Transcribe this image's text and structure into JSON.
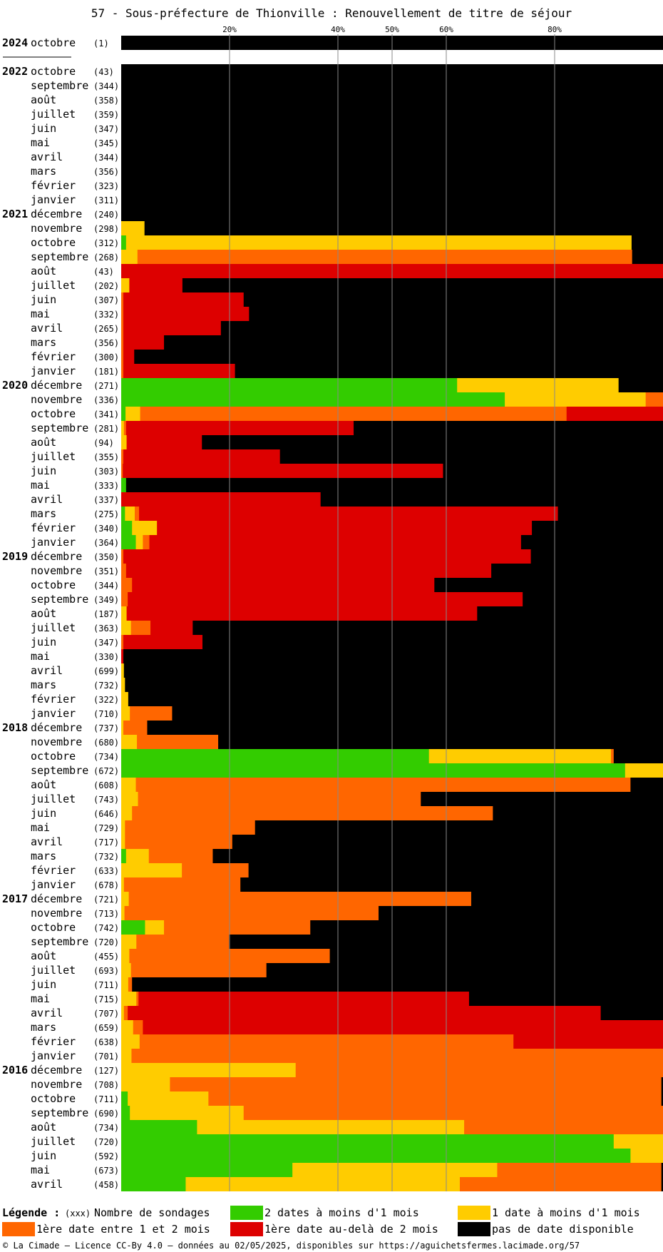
{
  "chart_data": {
    "type": "bar",
    "orientation": "horizontal",
    "stacked": true,
    "title": "57 - Sous-préfecture de Thionville : Renouvellement de titre de séjour",
    "x_ticks": [
      20,
      40,
      50,
      60,
      80
    ],
    "xlim": [
      0,
      100
    ],
    "x_unit": "%",
    "grid": true,
    "colors": {
      "two_dates": "#33cc00",
      "one_date": "#ffcc00",
      "first_1_2_months": "#ff6600",
      "first_over_2_months": "#dd0000",
      "none": "#000000"
    },
    "series_keys": [
      "two_dates",
      "one_date",
      "first_1_2_months",
      "first_over_2_months",
      "none"
    ],
    "rows": [
      {
        "year": "2024",
        "month": "octobre",
        "count": "(1)",
        "v": [
          0,
          0,
          0,
          0,
          100
        ]
      },
      {
        "year": "2022",
        "month": "octobre",
        "count": "(43)",
        "v": [
          0,
          0,
          0,
          0,
          100
        ]
      },
      {
        "year": "",
        "month": "septembre",
        "count": "(344)",
        "v": [
          0,
          0,
          0,
          0,
          100
        ]
      },
      {
        "year": "",
        "month": "août",
        "count": "(358)",
        "v": [
          0,
          0,
          0,
          0,
          100
        ]
      },
      {
        "year": "",
        "month": "juillet",
        "count": "(359)",
        "v": [
          0,
          0,
          0,
          0,
          100
        ]
      },
      {
        "year": "",
        "month": "juin",
        "count": "(347)",
        "v": [
          0,
          0,
          0,
          0,
          100
        ]
      },
      {
        "year": "",
        "month": "mai",
        "count": "(345)",
        "v": [
          0,
          0,
          0,
          0,
          100
        ]
      },
      {
        "year": "",
        "month": "avril",
        "count": "(344)",
        "v": [
          0,
          0,
          0,
          0,
          100
        ]
      },
      {
        "year": "",
        "month": "mars",
        "count": "(356)",
        "v": [
          0,
          0,
          0,
          0,
          100
        ]
      },
      {
        "year": "",
        "month": "février",
        "count": "(323)",
        "v": [
          0,
          0,
          0,
          0,
          100
        ]
      },
      {
        "year": "",
        "month": "janvier",
        "count": "(311)",
        "v": [
          0,
          0,
          0,
          0,
          100
        ]
      },
      {
        "year": "2021",
        "month": "décembre",
        "count": "(240)",
        "v": [
          0,
          0,
          0,
          0,
          100
        ]
      },
      {
        "year": "",
        "month": "novembre",
        "count": "(298)",
        "v": [
          0,
          4.3,
          0,
          0,
          95.7
        ]
      },
      {
        "year": "",
        "month": "octobre",
        "count": "(312)",
        "v": [
          0.9,
          93.3,
          0,
          0,
          5.8
        ]
      },
      {
        "year": "",
        "month": "septembre",
        "count": "(268)",
        "v": [
          0,
          3,
          91.3,
          0,
          5.7
        ]
      },
      {
        "year": "",
        "month": "août",
        "count": "(43)",
        "v": [
          0,
          0,
          0,
          100,
          0
        ]
      },
      {
        "year": "",
        "month": "juillet",
        "count": "(202)",
        "v": [
          0,
          1.5,
          0,
          9.8,
          88.7
        ]
      },
      {
        "year": "",
        "month": "juin",
        "count": "(307)",
        "v": [
          0,
          0,
          0.4,
          22.2,
          77.4
        ]
      },
      {
        "year": "",
        "month": "mai",
        "count": "(332)",
        "v": [
          0,
          0,
          0.4,
          23.2,
          76.4
        ]
      },
      {
        "year": "",
        "month": "avril",
        "count": "(265)",
        "v": [
          0,
          0,
          0.4,
          18,
          81.6
        ]
      },
      {
        "year": "",
        "month": "mars",
        "count": "(356)",
        "v": [
          0,
          0,
          0.4,
          7.5,
          92.1
        ]
      },
      {
        "year": "",
        "month": "février",
        "count": "(300)",
        "v": [
          0,
          0,
          0.4,
          2,
          97.6
        ]
      },
      {
        "year": "",
        "month": "janvier",
        "count": "(181)",
        "v": [
          0,
          0,
          0.4,
          20.6,
          79
        ]
      },
      {
        "year": "2020",
        "month": "décembre",
        "count": "(271)",
        "v": [
          62,
          29.8,
          0,
          0,
          8.2
        ]
      },
      {
        "year": "",
        "month": "novembre",
        "count": "(336)",
        "v": [
          70.8,
          26,
          3.2,
          0,
          0
        ]
      },
      {
        "year": "",
        "month": "octobre",
        "count": "(341)",
        "v": [
          0.8,
          2.7,
          78.7,
          17.8,
          0
        ]
      },
      {
        "year": "",
        "month": "septembre",
        "count": "(281)",
        "v": [
          0,
          0.5,
          0.4,
          42,
          57.1
        ]
      },
      {
        "year": "",
        "month": "août",
        "count": "(94)",
        "v": [
          0,
          1,
          0,
          13.9,
          85.1
        ]
      },
      {
        "year": "",
        "month": "juillet",
        "count": "(355)",
        "v": [
          0,
          0,
          0.4,
          28.9,
          70.7
        ]
      },
      {
        "year": "",
        "month": "juin",
        "count": "(303)",
        "v": [
          0,
          0,
          0.3,
          59.1,
          40.6
        ]
      },
      {
        "year": "",
        "month": "mai",
        "count": "(333)",
        "v": [
          0.9,
          0,
          0,
          0,
          99.1
        ]
      },
      {
        "year": "",
        "month": "avril",
        "count": "(337)",
        "v": [
          0,
          0,
          0,
          36.8,
          63.2
        ]
      },
      {
        "year": "",
        "month": "mars",
        "count": "(275)",
        "v": [
          0.7,
          1.8,
          0.8,
          77.3,
          19.4
        ]
      },
      {
        "year": "",
        "month": "février",
        "count": "(340)",
        "v": [
          2,
          4.6,
          0,
          69.2,
          24.2
        ]
      },
      {
        "year": "",
        "month": "janvier",
        "count": "(364)",
        "v": [
          2.7,
          1.3,
          1.2,
          68.6,
          26.2
        ]
      },
      {
        "year": "2019",
        "month": "décembre",
        "count": "(350)",
        "v": [
          0,
          0,
          0.4,
          75.2,
          24.4
        ]
      },
      {
        "year": "",
        "month": "novembre",
        "count": "(351)",
        "v": [
          0,
          0,
          0.9,
          67.4,
          31.7
        ]
      },
      {
        "year": "",
        "month": "octobre",
        "count": "(344)",
        "v": [
          0,
          0,
          2,
          55.8,
          42.2
        ]
      },
      {
        "year": "",
        "month": "septembre",
        "count": "(349)",
        "v": [
          0,
          0,
          1.2,
          72.9,
          25.9
        ]
      },
      {
        "year": "",
        "month": "août",
        "count": "(187)",
        "v": [
          0,
          1,
          0,
          64.7,
          34.3
        ]
      },
      {
        "year": "",
        "month": "juillet",
        "count": "(363)",
        "v": [
          0,
          1.8,
          3.6,
          7.8,
          86.8
        ]
      },
      {
        "year": "",
        "month": "juin",
        "count": "(347)",
        "v": [
          0,
          0,
          0.4,
          14.6,
          85
        ]
      },
      {
        "year": "",
        "month": "mai",
        "count": "(330)",
        "v": [
          0,
          0,
          0,
          0.4,
          99.6
        ]
      },
      {
        "year": "",
        "month": "avril",
        "count": "(699)",
        "v": [
          0,
          0.5,
          0,
          0,
          99.5
        ]
      },
      {
        "year": "",
        "month": "mars",
        "count": "(732)",
        "v": [
          0,
          0.7,
          0,
          0,
          99.3
        ]
      },
      {
        "year": "",
        "month": "février",
        "count": "(322)",
        "v": [
          0,
          1.3,
          0,
          0,
          98.7
        ]
      },
      {
        "year": "",
        "month": "janvier",
        "count": "(710)",
        "v": [
          0,
          1.6,
          7.8,
          0,
          90.6
        ]
      },
      {
        "year": "2018",
        "month": "décembre",
        "count": "(737)",
        "v": [
          0,
          0.4,
          4.4,
          0,
          95.2
        ]
      },
      {
        "year": "",
        "month": "novembre",
        "count": "(680)",
        "v": [
          0,
          2.9,
          15,
          0,
          82.1
        ]
      },
      {
        "year": "",
        "month": "octobre",
        "count": "(734)",
        "v": [
          56.8,
          33.6,
          0.5,
          0,
          9.1
        ]
      },
      {
        "year": "",
        "month": "septembre",
        "count": "(672)",
        "v": [
          93,
          7,
          0,
          0,
          0
        ]
      },
      {
        "year": "",
        "month": "août",
        "count": "(608)",
        "v": [
          0,
          2.7,
          91.3,
          0,
          6
        ]
      },
      {
        "year": "",
        "month": "juillet",
        "count": "(743)",
        "v": [
          0,
          3.1,
          52.2,
          0,
          44.7
        ]
      },
      {
        "year": "",
        "month": "juin",
        "count": "(646)",
        "v": [
          0,
          2,
          66.6,
          0,
          31.4
        ]
      },
      {
        "year": "",
        "month": "mai",
        "count": "(729)",
        "v": [
          0,
          0.7,
          24,
          0,
          75.3
        ]
      },
      {
        "year": "",
        "month": "avril",
        "count": "(717)",
        "v": [
          0,
          0.7,
          19.8,
          0,
          79.5
        ]
      },
      {
        "year": "",
        "month": "mars",
        "count": "(732)",
        "v": [
          0.9,
          4.2,
          11.8,
          0,
          83.1
        ]
      },
      {
        "year": "",
        "month": "février",
        "count": "(633)",
        "v": [
          0,
          11.2,
          12.3,
          0,
          76.5
        ]
      },
      {
        "year": "",
        "month": "janvier",
        "count": "(678)",
        "v": [
          0,
          0.5,
          21.5,
          0,
          78
        ]
      },
      {
        "year": "2017",
        "month": "décembre",
        "count": "(721)",
        "v": [
          0,
          1.4,
          63.2,
          0,
          35.4
        ]
      },
      {
        "year": "",
        "month": "novembre",
        "count": "(713)",
        "v": [
          0,
          0.6,
          46.9,
          0,
          52.5
        ]
      },
      {
        "year": "",
        "month": "octobre",
        "count": "(742)",
        "v": [
          4.4,
          3.5,
          27,
          0,
          65.1
        ]
      },
      {
        "year": "",
        "month": "septembre",
        "count": "(720)",
        "v": [
          0,
          2.8,
          17.1,
          0,
          80.1
        ]
      },
      {
        "year": "",
        "month": "août",
        "count": "(455)",
        "v": [
          0,
          1.5,
          37,
          0,
          61.5
        ]
      },
      {
        "year": "",
        "month": "juillet",
        "count": "(693)",
        "v": [
          0,
          1.8,
          25,
          0,
          73.2
        ]
      },
      {
        "year": "",
        "month": "juin",
        "count": "(711)",
        "v": [
          0,
          1.3,
          0.7,
          0,
          98
        ]
      },
      {
        "year": "",
        "month": "mai",
        "count": "(715)",
        "v": [
          0,
          2.8,
          0.4,
          61,
          35.8
        ]
      },
      {
        "year": "",
        "month": "avril",
        "count": "(707)",
        "v": [
          0,
          0.5,
          0.7,
          87.3,
          11.5
        ]
      },
      {
        "year": "",
        "month": "mars",
        "count": "(659)",
        "v": [
          0,
          2.2,
          1.8,
          96,
          0
        ]
      },
      {
        "year": "",
        "month": "février",
        "count": "(638)",
        "v": [
          0,
          3.4,
          69,
          27.6,
          0
        ]
      },
      {
        "year": "",
        "month": "janvier",
        "count": "(701)",
        "v": [
          0,
          1.9,
          98.1,
          0,
          0
        ]
      },
      {
        "year": "2016",
        "month": "décembre",
        "count": "(127)",
        "v": [
          0,
          32.2,
          67.8,
          0,
          0
        ]
      },
      {
        "year": "",
        "month": "novembre",
        "count": "(708)",
        "v": [
          0,
          9,
          90.7,
          0,
          0.3
        ]
      },
      {
        "year": "",
        "month": "octobre",
        "count": "(711)",
        "v": [
          1.2,
          14.9,
          83.6,
          0,
          0.3
        ]
      },
      {
        "year": "",
        "month": "septembre",
        "count": "(690)",
        "v": [
          1.6,
          21,
          77.4,
          0,
          0
        ]
      },
      {
        "year": "",
        "month": "août",
        "count": "(734)",
        "v": [
          14,
          49.3,
          36.7,
          0,
          0
        ]
      },
      {
        "year": "",
        "month": "juillet",
        "count": "(720)",
        "v": [
          90.9,
          9.1,
          0,
          0,
          0
        ]
      },
      {
        "year": "",
        "month": "juin",
        "count": "(592)",
        "v": [
          94,
          6,
          0,
          0,
          0
        ]
      },
      {
        "year": "",
        "month": "mai",
        "count": "(673)",
        "v": [
          31.6,
          37.8,
          30.3,
          0,
          0.3
        ]
      },
      {
        "year": "",
        "month": "avril",
        "count": "(458)",
        "v": [
          11.9,
          50.6,
          37.2,
          0,
          0.3
        ]
      }
    ],
    "legend": {
      "heading": "Légende :",
      "xxx": "(xxx)",
      "count_label": "Nombre de sondages",
      "items": [
        {
          "key": "two_dates",
          "label": "2 dates à moins d'1 mois"
        },
        {
          "key": "one_date",
          "label": "1 date à moins d'1 mois"
        },
        {
          "key": "first_1_2_months",
          "label": "1ère date entre 1 et 2 mois"
        },
        {
          "key": "first_over_2_months",
          "label": "1ère date au-delà de 2 mois"
        },
        {
          "key": "none",
          "label": "pas de date disponible"
        }
      ]
    },
    "footer": "© La Cimade – Licence CC-By 4.0 – données au 02/05/2025, disponibles sur https://aguichetsfermes.lacimade.org/57"
  }
}
